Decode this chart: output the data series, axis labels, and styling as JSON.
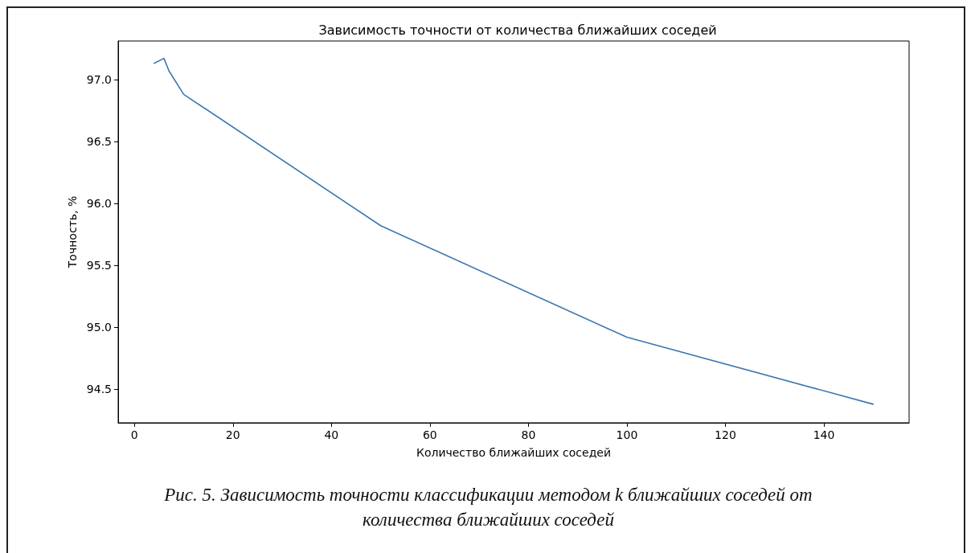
{
  "chart_data": {
    "type": "line",
    "title": "Зависимость точности от количества ближайших соседей",
    "xlabel": "Количество ближайших соседей",
    "ylabel": "Точность, %",
    "x": [
      4,
      6,
      7,
      10,
      50,
      100,
      150
    ],
    "series": [
      {
        "color": "#3a78b0",
        "values": [
          97.13,
          97.17,
          97.07,
          96.88,
          95.82,
          94.92,
          94.38
        ]
      }
    ],
    "xlim": [
      -3.3,
      157.3
    ],
    "xticks": [
      0,
      20,
      40,
      60,
      80,
      100,
      120,
      140
    ],
    "ylim": [
      94.23,
      97.31
    ],
    "yticks": [
      {
        "value": 94.5,
        "label": "94.5"
      },
      {
        "value": 95,
        "label": "95.0"
      },
      {
        "value": 95.5,
        "label": "95.5"
      },
      {
        "value": 96,
        "label": "96.0"
      },
      {
        "value": 96.5,
        "label": "96.5"
      },
      {
        "value": 97,
        "label": "97.0"
      }
    ],
    "grid": false,
    "marker": "none",
    "line_style": "solid",
    "annotations": [
      "Рис. 5. Зависимость точности классификации методом k ближайших соседей от количества ближайших соседей"
    ]
  }
}
